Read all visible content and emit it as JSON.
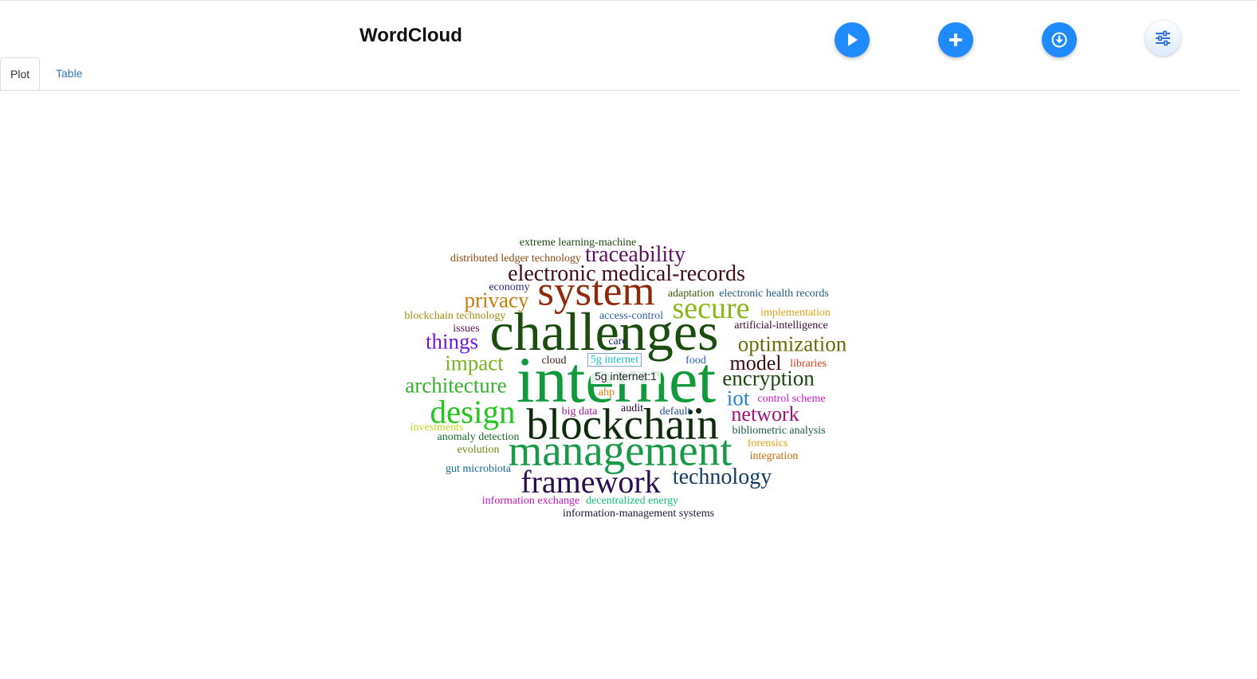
{
  "app": {
    "title": "WordCloud"
  },
  "toolbar": {
    "buttons": [
      {
        "name": "play-button",
        "icon": "play-icon"
      },
      {
        "name": "add-button",
        "icon": "plus-icon"
      },
      {
        "name": "download-button",
        "icon": "download-icon"
      },
      {
        "name": "settings-button",
        "icon": "sliders-icon"
      }
    ],
    "accent": "#1f8bff"
  },
  "tabs": [
    {
      "label": "Plot",
      "active": true
    },
    {
      "label": "Table",
      "active": false
    }
  ],
  "tooltip": {
    "text": "5g internet:1"
  },
  "words": [
    {
      "text": "internet",
      "color": "#119a3c"
    },
    {
      "text": "challenges",
      "color": "#1b4d0f"
    },
    {
      "text": "blockchain",
      "color": "#0e2c0b"
    },
    {
      "text": "management",
      "color": "#1a9a48"
    },
    {
      "text": "system",
      "color": "#8f2a0b"
    },
    {
      "text": "framework",
      "color": "#2a0c50"
    },
    {
      "text": "design",
      "color": "#23c41d"
    },
    {
      "text": "secure",
      "color": "#8db51a"
    },
    {
      "text": "electronic medical-records",
      "color": "#400c18"
    },
    {
      "text": "traceability",
      "color": "#5e1163"
    },
    {
      "text": "optimization",
      "color": "#6a6a07"
    },
    {
      "text": "technology",
      "color": "#163c66"
    },
    {
      "text": "encryption",
      "color": "#1b4612"
    },
    {
      "text": "model",
      "color": "#3d0a14"
    },
    {
      "text": "network",
      "color": "#9e1474"
    },
    {
      "text": "architecture",
      "color": "#37b032"
    },
    {
      "text": "privacy",
      "color": "#c47c0a"
    },
    {
      "text": "things",
      "color": "#6f1ad6"
    },
    {
      "text": "impact",
      "color": "#7ab11e"
    },
    {
      "text": "iot",
      "color": "#2381d6"
    },
    {
      "text": "extreme learning-machine",
      "color": "#1e4a10"
    },
    {
      "text": "distributed ledger technology",
      "color": "#8c4a13"
    },
    {
      "text": "economy",
      "color": "#2a2a7a"
    },
    {
      "text": "adaptation",
      "color": "#3b5a08"
    },
    {
      "text": "electronic health records",
      "color": "#1f5a86"
    },
    {
      "text": "blockchain technology",
      "color": "#a29012"
    },
    {
      "text": "access-control",
      "color": "#2a5eb0"
    },
    {
      "text": "implementation",
      "color": "#dba51a"
    },
    {
      "text": "issues",
      "color": "#5b1150"
    },
    {
      "text": "artificial-intelligence",
      "color": "#3c0a3a"
    },
    {
      "text": "care",
      "color": "#1a2a60"
    },
    {
      "text": "cloud",
      "color": "#3a1a10"
    },
    {
      "text": "5g internet",
      "color": "#1cc0c8"
    },
    {
      "text": "food",
      "color": "#2460b0"
    },
    {
      "text": "libraries",
      "color": "#d63a1a"
    },
    {
      "text": "ahp",
      "color": "#e07c10"
    },
    {
      "text": "control scheme",
      "color": "#c71ac7"
    },
    {
      "text": "big data",
      "color": "#a01a9e"
    },
    {
      "text": "audit",
      "color": "#2a0c40"
    },
    {
      "text": "default",
      "color": "#1f4a8a"
    },
    {
      "text": "investments",
      "color": "#c8d420"
    },
    {
      "text": "anomaly detection",
      "color": "#1a6a2a"
    },
    {
      "text": "bibliometric analysis",
      "color": "#1a5a4a"
    },
    {
      "text": "evolution",
      "color": "#6a8a10"
    },
    {
      "text": "forensics",
      "color": "#e0a010"
    },
    {
      "text": "integration",
      "color": "#c06a0a"
    },
    {
      "text": "gut microbiota",
      "color": "#1a6a9a"
    },
    {
      "text": "information exchange",
      "color": "#c01ab8"
    },
    {
      "text": "decentralized energy",
      "color": "#1ac080"
    },
    {
      "text": "information-management systems",
      "color": "#1a1a3a"
    }
  ]
}
